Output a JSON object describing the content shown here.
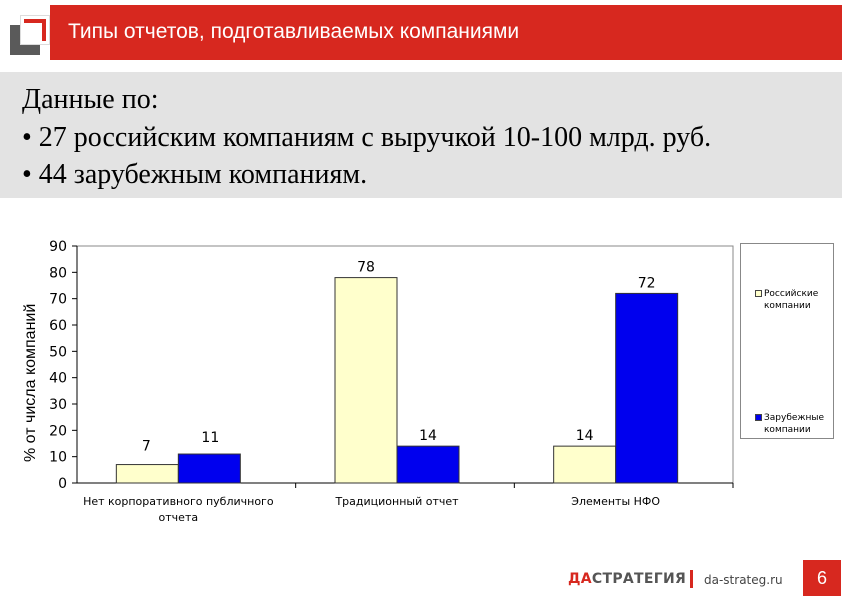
{
  "header": {
    "title": "Типы отчетов, подготавливаемых компаниями"
  },
  "info": {
    "line1": "Данные по:",
    "line2": "• 27 российским компаниям с выручкой 10-100 млрд. руб.",
    "line3": "• 44 зарубежным компаниям."
  },
  "chart_data": {
    "type": "bar",
    "categories": [
      "Нет корпоративного публичного отчета",
      "Традиционный отчет",
      "Элементы НФО"
    ],
    "series": [
      {
        "name": "Российские компании",
        "values": [
          7,
          78,
          14
        ],
        "color": "#ffffcc"
      },
      {
        "name": "Зарубежные компании",
        "values": [
          11,
          14,
          72
        ],
        "color": "#0000ee"
      }
    ],
    "ylabel": "% от числа компаний",
    "ylim": [
      0,
      90
    ],
    "yticks": [
      0,
      10,
      20,
      30,
      40,
      50,
      60,
      70,
      80,
      90
    ],
    "legend_position": "right"
  },
  "footer": {
    "logo_accent": "ДА",
    "logo_rest": "СТРАТЕГИЯ",
    "site": "da-strateg.ru",
    "page": "6"
  }
}
